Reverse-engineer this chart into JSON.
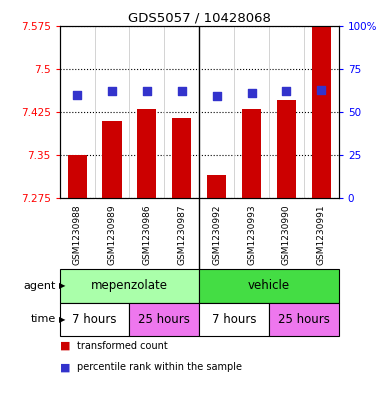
{
  "title": "GDS5057 / 10428068",
  "samples": [
    "GSM1230988",
    "GSM1230989",
    "GSM1230986",
    "GSM1230987",
    "GSM1230992",
    "GSM1230993",
    "GSM1230990",
    "GSM1230991"
  ],
  "transformed_count": [
    7.35,
    7.41,
    7.43,
    7.415,
    7.315,
    7.43,
    7.445,
    7.575
  ],
  "percentile_rank": [
    60,
    62,
    62,
    62,
    59,
    61,
    62,
    63
  ],
  "ylim_left": [
    7.275,
    7.575
  ],
  "ylim_right": [
    0,
    100
  ],
  "yticks_left": [
    7.275,
    7.35,
    7.425,
    7.5,
    7.575
  ],
  "yticks_right": [
    0,
    25,
    50,
    75,
    100
  ],
  "ytick_labels_left": [
    "7.275",
    "7.35",
    "7.425",
    "7.5",
    "7.575"
  ],
  "ytick_labels_right": [
    "0",
    "25",
    "50",
    "75",
    "100%"
  ],
  "bar_color": "#cc0000",
  "dot_color": "#3333cc",
  "bar_bottom": 7.275,
  "agent_groups": [
    {
      "label": "mepenzolate",
      "start": 0,
      "end": 4,
      "color": "#aaffaa"
    },
    {
      "label": "vehicle",
      "start": 4,
      "end": 8,
      "color": "#44dd44"
    }
  ],
  "time_groups": [
    {
      "label": "7 hours",
      "start": 0,
      "end": 2,
      "color": "#ffffff"
    },
    {
      "label": "25 hours",
      "start": 2,
      "end": 4,
      "color": "#ee77ee"
    },
    {
      "label": "7 hours",
      "start": 4,
      "end": 6,
      "color": "#ffffff"
    },
    {
      "label": "25 hours",
      "start": 6,
      "end": 8,
      "color": "#ee77ee"
    }
  ],
  "legend_items": [
    {
      "color": "#cc0000",
      "label": "transformed count"
    },
    {
      "color": "#3333cc",
      "label": "percentile rank within the sample"
    }
  ],
  "agent_label": "agent",
  "time_label": "time",
  "background_color": "#ffffff",
  "bar_width": 0.55,
  "dot_size": 35,
  "sample_bg_color": "#cccccc"
}
